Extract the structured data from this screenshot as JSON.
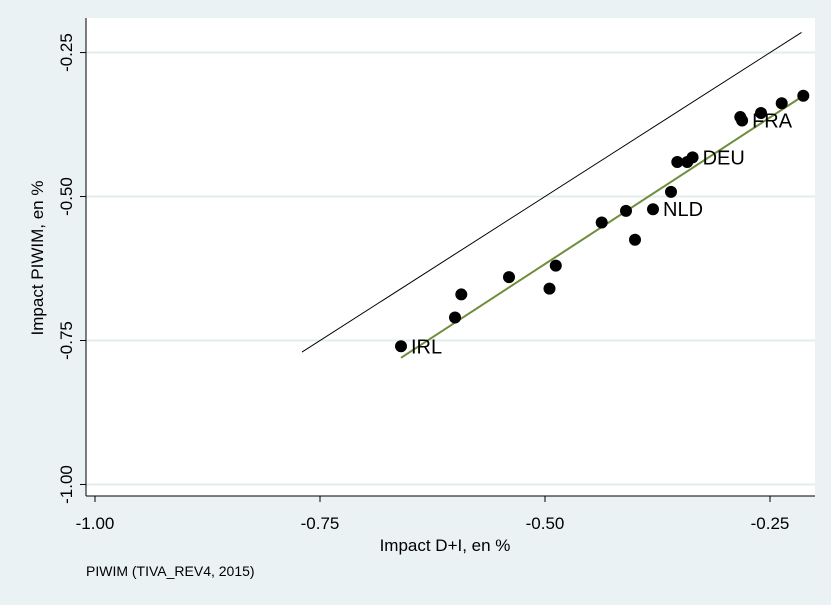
{
  "chart_data": {
    "type": "scatter",
    "title": "",
    "xlabel": "Impact D+I, en %",
    "ylabel": "Impact PIWIM, en %",
    "xlim": [
      -1.01,
      -0.2
    ],
    "ylim": [
      -1.02,
      -0.19
    ],
    "xticks": [
      -1.0,
      -0.75,
      -0.5,
      -0.25
    ],
    "xtick_labels": [
      "-1.00",
      "-0.75",
      "-0.50",
      "-0.25"
    ],
    "yticks": [
      -0.25,
      -0.5,
      -0.75,
      -1.0
    ],
    "ytick_labels": [
      "-0.25",
      "-0.50",
      "-0.75",
      "-1.00"
    ],
    "grid": "horizontal",
    "legend": "none",
    "points": [
      {
        "x": -0.66,
        "y": -0.76,
        "label": "IRL"
      },
      {
        "x": -0.6,
        "y": -0.71,
        "label": ""
      },
      {
        "x": -0.593,
        "y": -0.67,
        "label": ""
      },
      {
        "x": -0.54,
        "y": -0.64,
        "label": ""
      },
      {
        "x": -0.495,
        "y": -0.66,
        "label": ""
      },
      {
        "x": -0.488,
        "y": -0.62,
        "label": ""
      },
      {
        "x": -0.437,
        "y": -0.545,
        "label": ""
      },
      {
        "x": -0.41,
        "y": -0.525,
        "label": ""
      },
      {
        "x": -0.4,
        "y": -0.575,
        "label": ""
      },
      {
        "x": -0.38,
        "y": -0.522,
        "label": "NLD"
      },
      {
        "x": -0.36,
        "y": -0.492,
        "label": ""
      },
      {
        "x": -0.353,
        "y": -0.44,
        "label": ""
      },
      {
        "x": -0.342,
        "y": -0.44,
        "label": ""
      },
      {
        "x": -0.336,
        "y": -0.432,
        "label": "DEU"
      },
      {
        "x": -0.283,
        "y": -0.362,
        "label": ""
      },
      {
        "x": -0.281,
        "y": -0.368,
        "label": "FRA"
      },
      {
        "x": -0.26,
        "y": -0.355,
        "label": ""
      },
      {
        "x": -0.237,
        "y": -0.338,
        "label": ""
      },
      {
        "x": -0.213,
        "y": -0.325,
        "label": ""
      }
    ],
    "diagonal_line": {
      "x": [
        -0.77,
        -0.215
      ],
      "y": [
        -0.77,
        -0.215
      ],
      "color": "#000000"
    },
    "fit_line": {
      "x": [
        -0.66,
        -0.213
      ],
      "y": [
        -0.78,
        -0.325
      ],
      "color": "#6f8d3a"
    },
    "marker_color": "#000000"
  },
  "note": "PIWIM (TIVA_REV4, 2015)"
}
